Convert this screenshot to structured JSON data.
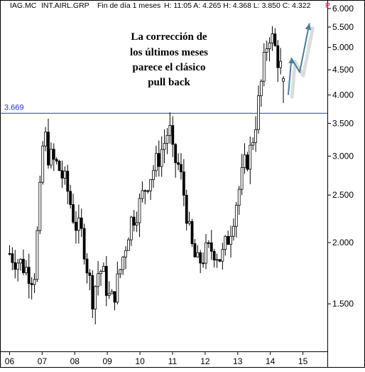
{
  "header": {
    "symbol": "IAG.MC",
    "name": "INT.AIRL.GRP",
    "period": "Fin de día 1 meses",
    "ohlc_text": "H: 11:05  A: 4.265  H: 4.368  L: 3.850  C: 4.322",
    "flag": "P"
  },
  "annotation": {
    "lines": [
      "La corrección de",
      "los últimos meses",
      "parece el clásico",
      "pull back"
    ]
  },
  "colors": {
    "candle": "#000000",
    "reference_line": "#2233cc",
    "projection_arrow": "#4a7f99",
    "frame": "#000000"
  },
  "chart_data": {
    "type": "candlestick",
    "title": "",
    "x_tick_labels": [
      "06",
      "07",
      "08",
      "09",
      "10",
      "11",
      "12",
      "13",
      "14",
      "15"
    ],
    "y_axis": {
      "scale": "log",
      "range": [
        1.2,
        6.0
      ],
      "tick_values": [
        1.5,
        2.0,
        2.5,
        3.0,
        3.5,
        4.0,
        4.5,
        5.0,
        5.5,
        6.0
      ],
      "tick_labels": [
        "1.500",
        "2.000",
        "2.500",
        "3.000",
        "3.500",
        "4.000",
        "4.500",
        "5.000",
        "5.500",
        "6.000"
      ]
    },
    "reference_line": {
      "value": 3.669,
      "label": "3.669"
    },
    "last_candle": {
      "open": 4.265,
      "high": 4.368,
      "low": 3.85,
      "close": 4.322
    },
    "price_path": [
      [
        2006.0,
        1.9
      ],
      [
        2006.4,
        1.8
      ],
      [
        2006.75,
        1.7
      ],
      [
        2006.9,
        2.3
      ],
      [
        2007.05,
        3.4
      ],
      [
        2007.2,
        3.0
      ],
      [
        2007.5,
        2.85
      ],
      [
        2007.75,
        2.6
      ],
      [
        2008.0,
        2.2
      ],
      [
        2008.25,
        2.05
      ],
      [
        2008.4,
        1.75
      ],
      [
        2008.55,
        1.55
      ],
      [
        2008.75,
        1.78
      ],
      [
        2008.9,
        1.7
      ],
      [
        2009.1,
        1.5
      ],
      [
        2009.3,
        1.65
      ],
      [
        2009.5,
        1.9
      ],
      [
        2009.7,
        2.2
      ],
      [
        2010.0,
        2.4
      ],
      [
        2010.2,
        2.65
      ],
      [
        2010.5,
        2.9
      ],
      [
        2010.75,
        3.2
      ],
      [
        2010.9,
        3.45
      ],
      [
        2011.0,
        3.0
      ],
      [
        2011.2,
        2.85
      ],
      [
        2011.4,
        2.4
      ],
      [
        2011.55,
        2.0
      ],
      [
        2011.75,
        1.8
      ],
      [
        2012.0,
        1.9
      ],
      [
        2012.25,
        1.95
      ],
      [
        2012.5,
        1.85
      ],
      [
        2012.75,
        2.1
      ],
      [
        2013.0,
        2.5
      ],
      [
        2013.2,
        2.85
      ],
      [
        2013.4,
        3.1
      ],
      [
        2013.6,
        3.7
      ],
      [
        2013.8,
        4.6
      ],
      [
        2013.95,
        5.4
      ],
      [
        2014.1,
        5.1
      ],
      [
        2014.25,
        4.7
      ],
      [
        2014.4,
        4.35
      ]
    ],
    "projection_arrow": {
      "path": [
        [
          2014.55,
          4.0
        ],
        [
          2014.65,
          4.75
        ],
        [
          2014.9,
          4.45
        ],
        [
          2015.2,
          5.6
        ]
      ]
    }
  }
}
